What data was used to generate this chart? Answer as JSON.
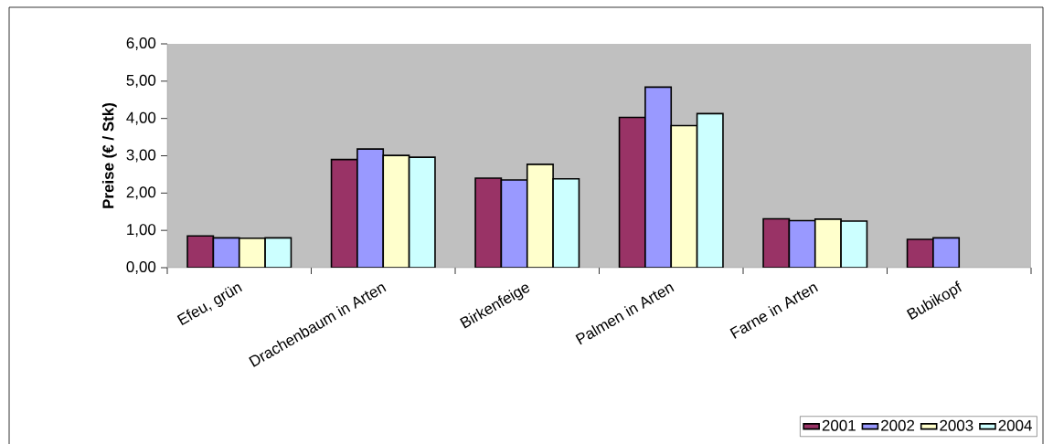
{
  "chart_data": {
    "type": "bar",
    "ylabel": "Preise (€ / Stk)",
    "categories": [
      "Efeu, grün",
      "Drachenbaum in Arten",
      "Birkenfeige",
      "Palmen in Arten",
      "Farne in Arten",
      "Bubikopf"
    ],
    "series": [
      {
        "name": "2001",
        "color": "#993366",
        "values": [
          0.85,
          2.9,
          2.4,
          4.03,
          1.31,
          0.76
        ]
      },
      {
        "name": "2002",
        "color": "#9999ff",
        "values": [
          0.8,
          3.18,
          2.35,
          4.84,
          1.26,
          0.8
        ]
      },
      {
        "name": "2003",
        "color": "#ffffcc",
        "values": [
          0.79,
          3.01,
          2.77,
          3.81,
          1.3,
          null
        ]
      },
      {
        "name": "2004",
        "color": "#ccffff",
        "values": [
          0.8,
          2.96,
          2.38,
          4.13,
          1.25,
          null
        ]
      }
    ],
    "ylim": [
      0,
      6
    ],
    "yticks": [
      {
        "value": 0,
        "label": "0,00"
      },
      {
        "value": 1,
        "label": "1,00"
      },
      {
        "value": 2,
        "label": "2,00"
      },
      {
        "value": 3,
        "label": "3,00"
      },
      {
        "value": 4,
        "label": "4,00"
      },
      {
        "value": 5,
        "label": "5,00"
      },
      {
        "value": 6,
        "label": "6,00"
      }
    ],
    "grid": false,
    "legend": "bottom right"
  }
}
